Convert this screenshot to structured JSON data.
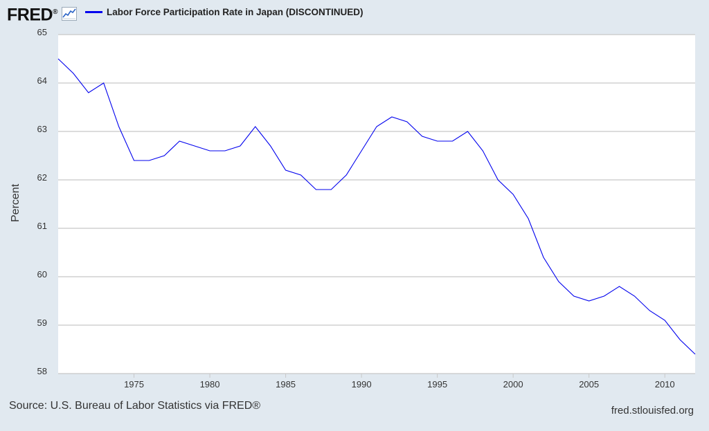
{
  "header": {
    "logo_text": "FRED",
    "logo_mark": "®",
    "graph_icon": "trend-chart-icon",
    "legend_label": "Labor Force Participation Rate in Japan (DISCONTINUED)",
    "legend_color": "#0000ee"
  },
  "footer": {
    "source": "Source: U.S. Bureau of Labor Statistics via FRED®",
    "site": "fred.stlouisfed.org"
  },
  "chart_data": {
    "type": "line",
    "title": "",
    "xlabel": "",
    "ylabel": "Percent",
    "ylim": [
      58,
      65
    ],
    "xlim": [
      1970,
      2012
    ],
    "yticks": [
      58,
      59,
      60,
      61,
      62,
      63,
      64,
      65
    ],
    "xticks": [
      1975,
      1980,
      1985,
      1990,
      1995,
      2000,
      2005,
      2010
    ],
    "grid": "horizontal",
    "background": "#e1e9f0",
    "plot_background": "#ffffff",
    "series": [
      {
        "name": "Labor Force Participation Rate in Japan (DISCONTINUED)",
        "color": "#0000ee",
        "x": [
          1970,
          1971,
          1972,
          1973,
          1974,
          1975,
          1976,
          1977,
          1978,
          1979,
          1980,
          1981,
          1982,
          1983,
          1984,
          1985,
          1986,
          1987,
          1988,
          1989,
          1990,
          1991,
          1992,
          1993,
          1994,
          1995,
          1996,
          1997,
          1998,
          1999,
          2000,
          2001,
          2002,
          2003,
          2004,
          2005,
          2006,
          2007,
          2008,
          2009,
          2010,
          2011,
          2012
        ],
        "values": [
          64.5,
          64.2,
          63.8,
          64.0,
          63.1,
          62.4,
          62.4,
          62.5,
          62.8,
          62.7,
          62.6,
          62.6,
          62.7,
          63.1,
          62.7,
          62.2,
          62.1,
          61.8,
          61.8,
          62.1,
          62.6,
          63.1,
          63.3,
          63.2,
          62.9,
          62.8,
          62.8,
          63.0,
          62.6,
          62.0,
          61.7,
          61.2,
          60.4,
          59.9,
          59.6,
          59.5,
          59.6,
          59.8,
          59.6,
          59.3,
          59.1,
          58.7,
          58.4
        ]
      }
    ]
  }
}
